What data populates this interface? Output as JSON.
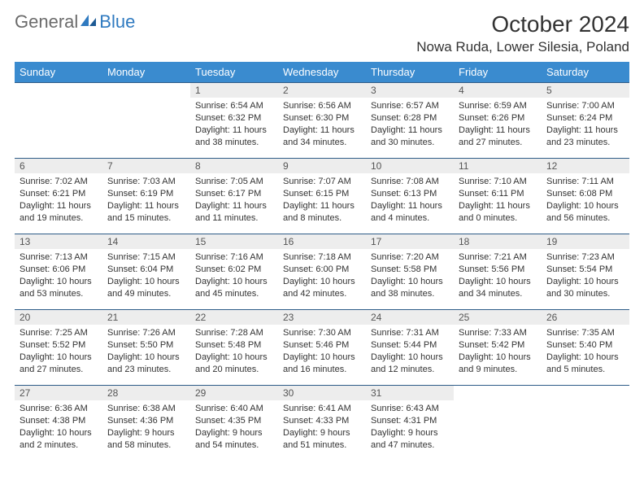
{
  "logo": {
    "general": "General",
    "blue": "Blue"
  },
  "title": "October 2024",
  "location": "Nowa Ruda, Lower Silesia, Poland",
  "colors": {
    "header_bg": "#3a8bcf",
    "header_text": "#ffffff",
    "daynum_bg": "#ededed",
    "cell_border": "#2e5c88",
    "logo_general": "#6b6b6b",
    "logo_blue": "#2f7ac0",
    "text": "#333333",
    "background": "#ffffff"
  },
  "typography": {
    "title_fontsize": 28,
    "location_fontsize": 17,
    "dow_fontsize": 13,
    "daynum_fontsize": 12,
    "body_fontsize": 11
  },
  "days_of_week": [
    "Sunday",
    "Monday",
    "Tuesday",
    "Wednesday",
    "Thursday",
    "Friday",
    "Saturday"
  ],
  "cells": [
    {},
    {},
    {
      "num": "1",
      "sunrise": "Sunrise: 6:54 AM",
      "sunset": "Sunset: 6:32 PM",
      "daylight": "Daylight: 11 hours and 38 minutes."
    },
    {
      "num": "2",
      "sunrise": "Sunrise: 6:56 AM",
      "sunset": "Sunset: 6:30 PM",
      "daylight": "Daylight: 11 hours and 34 minutes."
    },
    {
      "num": "3",
      "sunrise": "Sunrise: 6:57 AM",
      "sunset": "Sunset: 6:28 PM",
      "daylight": "Daylight: 11 hours and 30 minutes."
    },
    {
      "num": "4",
      "sunrise": "Sunrise: 6:59 AM",
      "sunset": "Sunset: 6:26 PM",
      "daylight": "Daylight: 11 hours and 27 minutes."
    },
    {
      "num": "5",
      "sunrise": "Sunrise: 7:00 AM",
      "sunset": "Sunset: 6:24 PM",
      "daylight": "Daylight: 11 hours and 23 minutes."
    },
    {
      "num": "6",
      "sunrise": "Sunrise: 7:02 AM",
      "sunset": "Sunset: 6:21 PM",
      "daylight": "Daylight: 11 hours and 19 minutes."
    },
    {
      "num": "7",
      "sunrise": "Sunrise: 7:03 AM",
      "sunset": "Sunset: 6:19 PM",
      "daylight": "Daylight: 11 hours and 15 minutes."
    },
    {
      "num": "8",
      "sunrise": "Sunrise: 7:05 AM",
      "sunset": "Sunset: 6:17 PM",
      "daylight": "Daylight: 11 hours and 11 minutes."
    },
    {
      "num": "9",
      "sunrise": "Sunrise: 7:07 AM",
      "sunset": "Sunset: 6:15 PM",
      "daylight": "Daylight: 11 hours and 8 minutes."
    },
    {
      "num": "10",
      "sunrise": "Sunrise: 7:08 AM",
      "sunset": "Sunset: 6:13 PM",
      "daylight": "Daylight: 11 hours and 4 minutes."
    },
    {
      "num": "11",
      "sunrise": "Sunrise: 7:10 AM",
      "sunset": "Sunset: 6:11 PM",
      "daylight": "Daylight: 11 hours and 0 minutes."
    },
    {
      "num": "12",
      "sunrise": "Sunrise: 7:11 AM",
      "sunset": "Sunset: 6:08 PM",
      "daylight": "Daylight: 10 hours and 56 minutes."
    },
    {
      "num": "13",
      "sunrise": "Sunrise: 7:13 AM",
      "sunset": "Sunset: 6:06 PM",
      "daylight": "Daylight: 10 hours and 53 minutes."
    },
    {
      "num": "14",
      "sunrise": "Sunrise: 7:15 AM",
      "sunset": "Sunset: 6:04 PM",
      "daylight": "Daylight: 10 hours and 49 minutes."
    },
    {
      "num": "15",
      "sunrise": "Sunrise: 7:16 AM",
      "sunset": "Sunset: 6:02 PM",
      "daylight": "Daylight: 10 hours and 45 minutes."
    },
    {
      "num": "16",
      "sunrise": "Sunrise: 7:18 AM",
      "sunset": "Sunset: 6:00 PM",
      "daylight": "Daylight: 10 hours and 42 minutes."
    },
    {
      "num": "17",
      "sunrise": "Sunrise: 7:20 AM",
      "sunset": "Sunset: 5:58 PM",
      "daylight": "Daylight: 10 hours and 38 minutes."
    },
    {
      "num": "18",
      "sunrise": "Sunrise: 7:21 AM",
      "sunset": "Sunset: 5:56 PM",
      "daylight": "Daylight: 10 hours and 34 minutes."
    },
    {
      "num": "19",
      "sunrise": "Sunrise: 7:23 AM",
      "sunset": "Sunset: 5:54 PM",
      "daylight": "Daylight: 10 hours and 30 minutes."
    },
    {
      "num": "20",
      "sunrise": "Sunrise: 7:25 AM",
      "sunset": "Sunset: 5:52 PM",
      "daylight": "Daylight: 10 hours and 27 minutes."
    },
    {
      "num": "21",
      "sunrise": "Sunrise: 7:26 AM",
      "sunset": "Sunset: 5:50 PM",
      "daylight": "Daylight: 10 hours and 23 minutes."
    },
    {
      "num": "22",
      "sunrise": "Sunrise: 7:28 AM",
      "sunset": "Sunset: 5:48 PM",
      "daylight": "Daylight: 10 hours and 20 minutes."
    },
    {
      "num": "23",
      "sunrise": "Sunrise: 7:30 AM",
      "sunset": "Sunset: 5:46 PM",
      "daylight": "Daylight: 10 hours and 16 minutes."
    },
    {
      "num": "24",
      "sunrise": "Sunrise: 7:31 AM",
      "sunset": "Sunset: 5:44 PM",
      "daylight": "Daylight: 10 hours and 12 minutes."
    },
    {
      "num": "25",
      "sunrise": "Sunrise: 7:33 AM",
      "sunset": "Sunset: 5:42 PM",
      "daylight": "Daylight: 10 hours and 9 minutes."
    },
    {
      "num": "26",
      "sunrise": "Sunrise: 7:35 AM",
      "sunset": "Sunset: 5:40 PM",
      "daylight": "Daylight: 10 hours and 5 minutes."
    },
    {
      "num": "27",
      "sunrise": "Sunrise: 6:36 AM",
      "sunset": "Sunset: 4:38 PM",
      "daylight": "Daylight: 10 hours and 2 minutes."
    },
    {
      "num": "28",
      "sunrise": "Sunrise: 6:38 AM",
      "sunset": "Sunset: 4:36 PM",
      "daylight": "Daylight: 9 hours and 58 minutes."
    },
    {
      "num": "29",
      "sunrise": "Sunrise: 6:40 AM",
      "sunset": "Sunset: 4:35 PM",
      "daylight": "Daylight: 9 hours and 54 minutes."
    },
    {
      "num": "30",
      "sunrise": "Sunrise: 6:41 AM",
      "sunset": "Sunset: 4:33 PM",
      "daylight": "Daylight: 9 hours and 51 minutes."
    },
    {
      "num": "31",
      "sunrise": "Sunrise: 6:43 AM",
      "sunset": "Sunset: 4:31 PM",
      "daylight": "Daylight: 9 hours and 47 minutes."
    },
    {},
    {}
  ]
}
